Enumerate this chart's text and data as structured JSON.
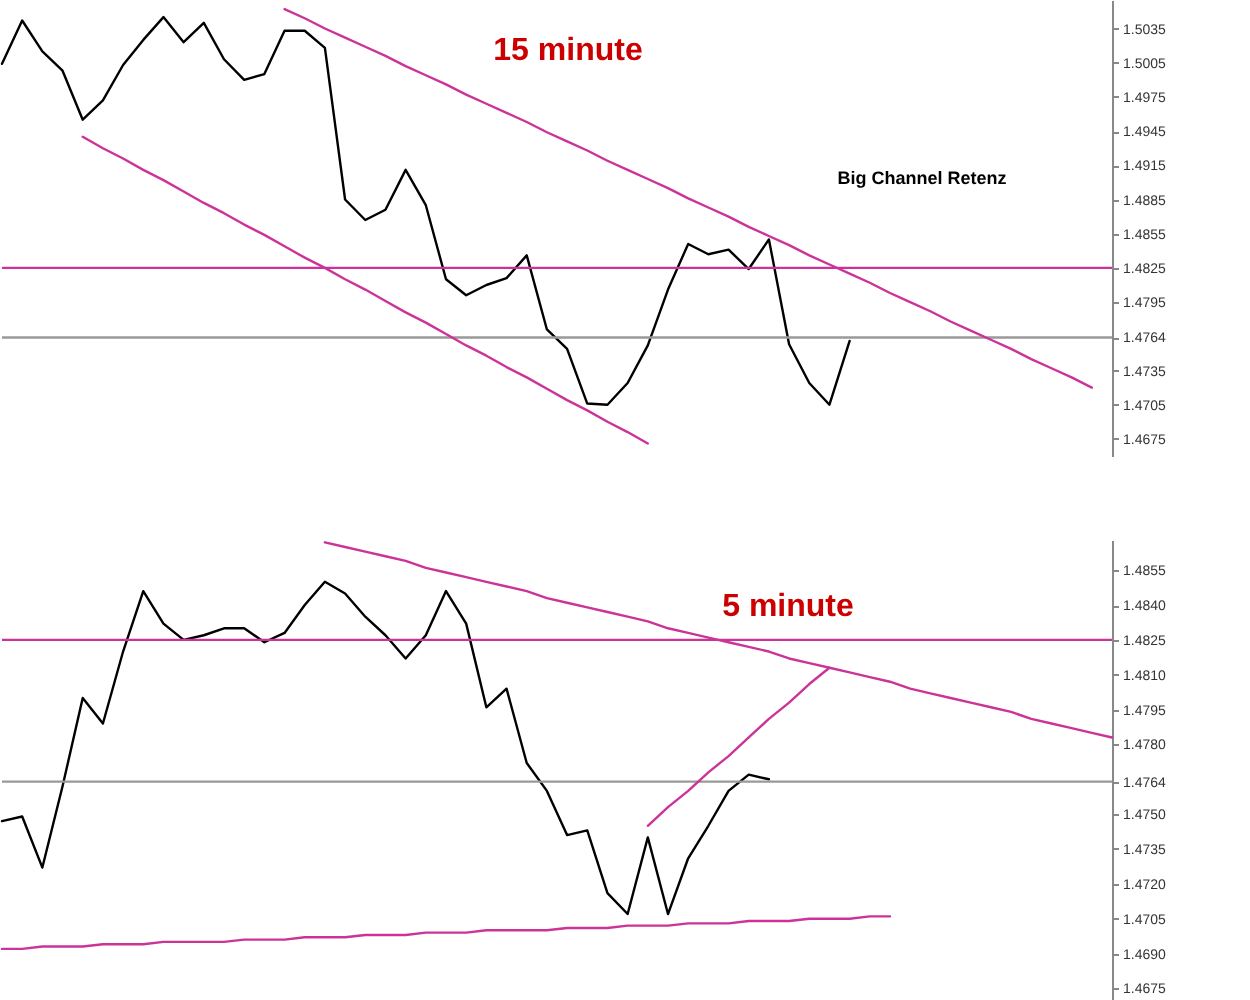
{
  "chart_data": [
    {
      "type": "line",
      "ylim": [
        1.466,
        1.506
      ],
      "categories": [
        null,
        null,
        null,
        null,
        null,
        null,
        null,
        null,
        null,
        null,
        null,
        null,
        null,
        null,
        null,
        null,
        null,
        null,
        null,
        null,
        null,
        null,
        null,
        null,
        null,
        null,
        null,
        null,
        null,
        null,
        null,
        null,
        null,
        null,
        null,
        null,
        null,
        null,
        null,
        null,
        null,
        null,
        null,
        null,
        null,
        null,
        null,
        null,
        null,
        null,
        null,
        null,
        null,
        null,
        null,
        null
      ],
      "yticks": [
        1.5035,
        1.5005,
        1.4975,
        1.4945,
        1.4915,
        1.4885,
        1.4855,
        1.4825,
        1.4795,
        1.4764,
        1.4735,
        1.4705,
        1.4675
      ],
      "annotations": [
        "15 minute",
        "Big Channel Retenz"
      ],
      "ref_lines": [
        {
          "axis": "y",
          "value": 1.4825,
          "color": "#cc3399"
        },
        {
          "axis": "y",
          "value": 1.4764,
          "color": "#999999"
        }
      ],
      "series": [
        {
          "color": "#000000",
          "values": [
            1.5004,
            1.5042,
            1.5015,
            1.4998,
            1.4955,
            1.4972,
            1.5003,
            1.5025,
            1.5045,
            1.5023,
            1.504,
            1.5008,
            1.499,
            1.4995,
            1.5033,
            1.5033,
            1.5018,
            1.4885,
            1.4867,
            1.4876,
            1.4911,
            1.488,
            1.4815,
            1.4801,
            1.481,
            1.4816,
            1.4836,
            1.4771,
            1.4754,
            1.4706,
            1.4705,
            1.4724,
            1.4757,
            1.4806,
            1.4846,
            1.4837,
            1.4841,
            1.4824,
            1.485,
            1.4758,
            1.4724,
            1.4705,
            1.4761,
            null,
            null,
            null,
            null,
            null,
            null,
            null,
            null,
            null,
            null,
            null,
            null,
            null
          ]
        },
        {
          "color": "#cc3399",
          "values": [
            null,
            null,
            null,
            null,
            null,
            null,
            null,
            null,
            null,
            null,
            null,
            null,
            null,
            null,
            1.5052,
            1.5044,
            1.5035,
            1.5027,
            1.5019,
            1.5011,
            1.5002,
            1.4994,
            1.4986,
            1.4977,
            1.4969,
            1.4961,
            1.4953,
            1.4944,
            1.4936,
            1.4928,
            1.4919,
            1.4911,
            1.4903,
            1.4895,
            1.4886,
            1.4878,
            1.487,
            1.4861,
            1.4853,
            1.4845,
            1.4836,
            1.4828,
            1.482,
            1.4812,
            1.4803,
            1.4795,
            1.4787,
            1.4778,
            1.477,
            1.4762,
            1.4754,
            1.4745,
            1.4737,
            1.4729,
            1.472,
            null
          ]
        },
        {
          "color": "#cc3399",
          "values": [
            null,
            null,
            null,
            null,
            1.494,
            1.493,
            1.4921,
            1.4911,
            1.4902,
            1.4892,
            1.4882,
            1.4873,
            1.4863,
            1.4854,
            1.4844,
            1.4834,
            1.4825,
            1.4815,
            1.4806,
            1.4796,
            1.4786,
            1.4777,
            1.4767,
            1.4757,
            1.4748,
            1.4738,
            1.4729,
            1.4719,
            1.4709,
            1.47,
            1.469,
            1.4681,
            1.4671,
            null,
            null,
            null,
            null,
            null,
            null,
            null,
            null,
            null,
            null,
            null,
            null,
            null,
            null,
            null,
            null,
            null,
            null,
            null,
            null,
            null,
            null,
            null
          ]
        }
      ]
    },
    {
      "type": "line",
      "ylim": [
        1.467,
        1.4868
      ],
      "categories": [
        null,
        null,
        null,
        null,
        null,
        null,
        null,
        null,
        null,
        null,
        null,
        null,
        null,
        null,
        null,
        null,
        null,
        null,
        null,
        null,
        null,
        null,
        null,
        null,
        null,
        null,
        null,
        null,
        null,
        null,
        null,
        null,
        null,
        null,
        null,
        null,
        null,
        null,
        null,
        null,
        null,
        null,
        null,
        null,
        null,
        null,
        null,
        null,
        null,
        null,
        null,
        null,
        null,
        null,
        null,
        null
      ],
      "yticks": [
        1.4855,
        {
          "value": 1.484,
          "label": "1.4840"
        },
        1.4825,
        {
          "value": 1.481,
          "label": "1.4810"
        },
        1.4795,
        {
          "value": 1.478,
          "label": "1.4780"
        },
        1.4764,
        {
          "value": 1.475,
          "label": "1.4750"
        },
        1.4735,
        {
          "value": 1.472,
          "label": "1.4720"
        },
        1.4705,
        {
          "value": 1.469,
          "label": "1.4690"
        },
        1.4675
      ],
      "annotations": [
        "5 minute"
      ],
      "ref_lines": [
        {
          "axis": "y",
          "value": 1.4825,
          "color": "#cc3399"
        },
        {
          "axis": "y",
          "value": 1.4764,
          "color": "#999999"
        }
      ],
      "series": [
        {
          "color": "#000000",
          "values": [
            1.4747,
            1.4749,
            1.4727,
            1.4762,
            1.48,
            1.4789,
            1.482,
            1.4846,
            1.4832,
            1.4825,
            1.4827,
            1.483,
            1.483,
            1.4824,
            1.4828,
            1.484,
            1.485,
            1.4845,
            1.4835,
            1.4827,
            1.4817,
            1.4827,
            1.4846,
            1.4832,
            1.4796,
            1.4804,
            1.4772,
            1.476,
            1.4741,
            1.4743,
            1.4716,
            1.4707,
            1.474,
            1.4707,
            1.4731,
            1.4745,
            1.476,
            1.4767,
            1.4765,
            null,
            null,
            null,
            null,
            null,
            null,
            null,
            null,
            null,
            null,
            null,
            null,
            null,
            null,
            null,
            null,
            null
          ]
        },
        {
          "color": "#cc3399",
          "values": [
            null,
            null,
            null,
            null,
            null,
            null,
            null,
            null,
            null,
            null,
            null,
            null,
            null,
            null,
            null,
            null,
            1.4867,
            1.4865,
            1.4863,
            1.4861,
            1.4859,
            1.4856,
            1.4854,
            1.4852,
            1.485,
            1.4848,
            1.4846,
            1.4843,
            1.4841,
            1.4839,
            1.4837,
            1.4835,
            1.4833,
            1.483,
            1.4828,
            1.4826,
            1.4824,
            1.4822,
            1.482,
            1.4817,
            1.4815,
            1.4813,
            1.4811,
            1.4809,
            1.4807,
            1.4804,
            1.4802,
            1.48,
            1.4798,
            1.4796,
            1.4794,
            1.4791,
            1.4789,
            1.4787,
            1.4785,
            1.4783
          ]
        },
        {
          "color": "#cc3399",
          "values": [
            null,
            null,
            null,
            null,
            null,
            null,
            null,
            null,
            null,
            null,
            null,
            null,
            null,
            null,
            null,
            null,
            null,
            null,
            null,
            null,
            null,
            null,
            null,
            null,
            null,
            null,
            null,
            null,
            null,
            null,
            null,
            null,
            1.4745,
            1.4753,
            1.476,
            1.4768,
            1.4775,
            1.4783,
            1.4791,
            1.4798,
            1.4806,
            1.4813,
            null,
            null,
            null,
            null,
            null,
            null,
            null,
            null,
            null,
            null,
            null,
            null,
            null,
            null
          ]
        },
        {
          "color": "#cc3399",
          "values": [
            1.4692,
            1.4692,
            1.4693,
            1.4693,
            1.4693,
            1.4694,
            1.4694,
            1.4694,
            1.4695,
            1.4695,
            1.4695,
            1.4695,
            1.4696,
            1.4696,
            1.4696,
            1.4697,
            1.4697,
            1.4697,
            1.4698,
            1.4698,
            1.4698,
            1.4699,
            1.4699,
            1.4699,
            1.47,
            1.47,
            1.47,
            1.47,
            1.4701,
            1.4701,
            1.4701,
            1.4702,
            1.4702,
            1.4702,
            1.4703,
            1.4703,
            1.4703,
            1.4704,
            1.4704,
            1.4704,
            1.4705,
            1.4705,
            1.4705,
            1.4706,
            1.4706,
            null,
            null,
            null,
            null,
            null,
            null,
            null,
            null,
            null,
            null,
            null
          ]
        }
      ]
    }
  ]
}
